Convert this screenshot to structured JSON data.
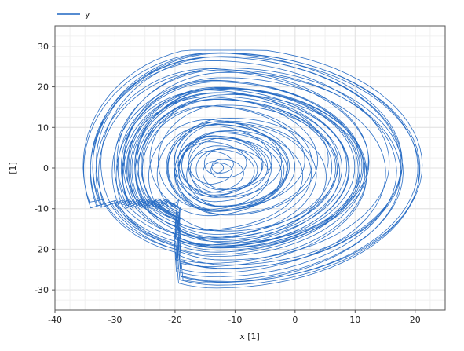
{
  "chart_data": {
    "type": "line",
    "title": "",
    "xlabel": "x [1]",
    "ylabel": "[1]",
    "xlim": [
      -40,
      25
    ],
    "ylim": [
      -35,
      35
    ],
    "x_ticks": [
      -40,
      -30,
      -20,
      -10,
      0,
      10,
      20
    ],
    "y_ticks": [
      -30,
      -20,
      -10,
      0,
      10,
      20,
      30
    ],
    "grid": true,
    "minor_grid": true,
    "legend": {
      "position": "top-left",
      "entries": [
        "y"
      ]
    },
    "series": [
      {
        "name": "y",
        "color": "#1f66c2",
        "description_points": [
          [
            -13,
            0
          ],
          [
            -14,
            1.5
          ],
          [
            -15,
            -1
          ],
          [
            -12,
            -2
          ],
          [
            -11,
            1
          ],
          [
            -16,
            3
          ],
          [
            -18,
            -2
          ],
          [
            -14,
            -5
          ],
          [
            -9,
            -1
          ],
          [
            -10,
            5
          ],
          [
            -17,
            6
          ],
          [
            -21,
            0
          ],
          [
            -17,
            -8
          ],
          [
            -8,
            -4
          ],
          [
            -6,
            5
          ],
          [
            -15,
            10
          ],
          [
            -24,
            3
          ],
          [
            -22,
            -11
          ],
          [
            -10,
            -12
          ],
          [
            -2,
            -2
          ],
          [
            -4,
            13
          ],
          [
            -17,
            17
          ],
          [
            -30,
            8
          ],
          [
            -33,
            -6
          ],
          [
            -26,
            -17
          ],
          [
            -12,
            -26
          ],
          [
            2,
            -30
          ],
          [
            12,
            -23
          ],
          [
            20,
            -10
          ],
          [
            22,
            2
          ],
          [
            18,
            15
          ],
          [
            6,
            26
          ],
          [
            -5,
            29
          ],
          [
            -18,
            25
          ],
          [
            -30,
            16
          ],
          [
            -35,
            3
          ],
          [
            -34,
            -8
          ],
          [
            -25,
            -19
          ],
          [
            -5,
            -27
          ],
          [
            10,
            -20
          ],
          [
            16,
            -5
          ],
          [
            12,
            10
          ],
          [
            0,
            20
          ],
          [
            -14,
            22
          ],
          [
            -26,
            13
          ],
          [
            -29,
            0
          ],
          [
            -24,
            -12
          ],
          [
            -12,
            -15
          ],
          [
            -4,
            -8
          ],
          [
            -6,
            4
          ],
          [
            -14,
            8
          ],
          [
            -20,
            3
          ],
          [
            -18,
            -4
          ],
          [
            -13,
            -3
          ],
          [
            -12,
            0
          ]
        ]
      }
    ]
  }
}
